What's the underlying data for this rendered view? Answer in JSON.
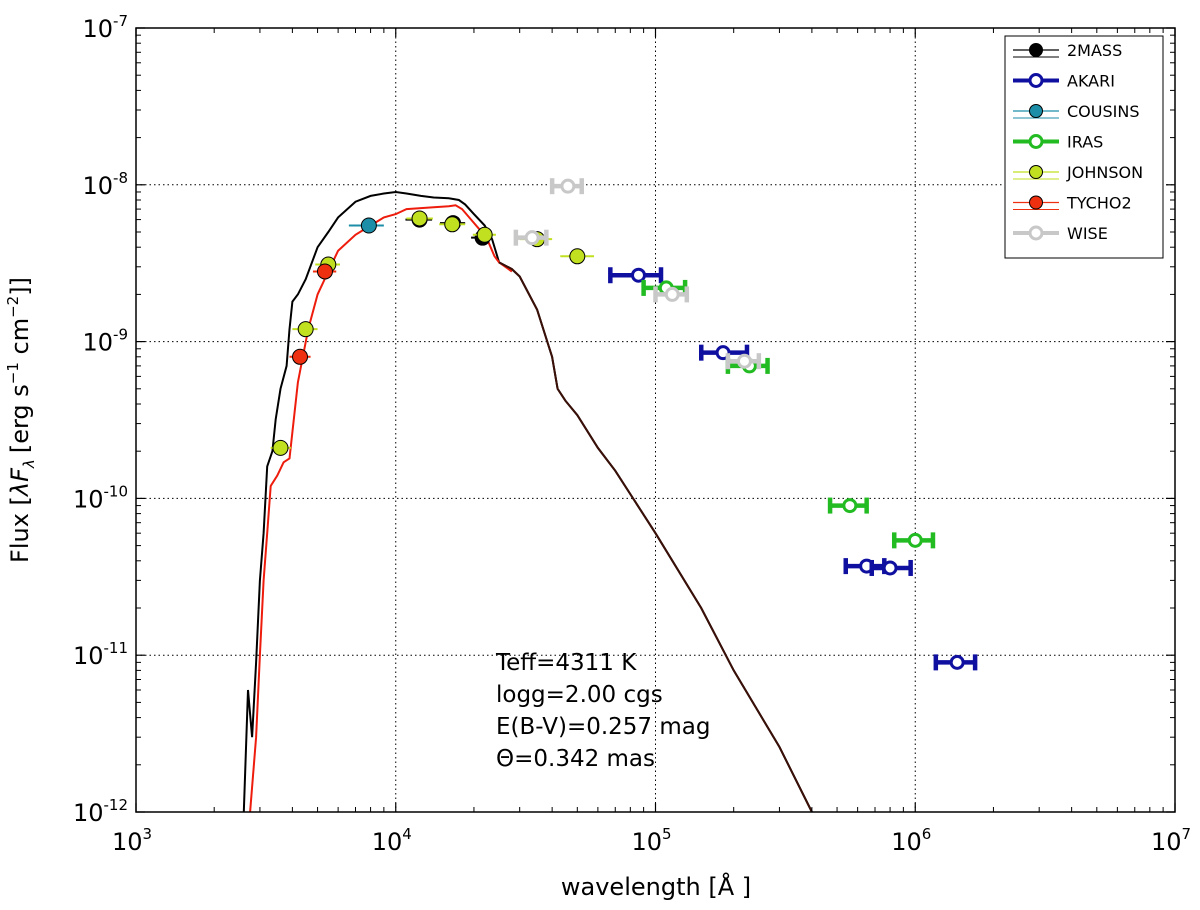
{
  "chart_data": {
    "type": "scatter",
    "title": "",
    "xlabel": "wavelength [Å ]",
    "ylabel": "Flux [λF_λ [erg s⁻¹ cm⁻²]]",
    "ylabel_parts": {
      "prefix": "Flux [",
      "lambda": "λ",
      "F": "F",
      "sub": "λ",
      "units": "[erg s",
      "exp1": "−1",
      "cm": " cm",
      "exp2": "−2",
      "close": "]]"
    },
    "x_scale": "log",
    "y_scale": "log",
    "xlim": [
      1000,
      10000000
    ],
    "ylim": [
      1e-12,
      1e-07
    ],
    "x_ticks": [
      {
        "base": "10",
        "exp": "3",
        "value": 1000
      },
      {
        "base": "10",
        "exp": "4",
        "value": 10000
      },
      {
        "base": "10",
        "exp": "5",
        "value": 100000
      },
      {
        "base": "10",
        "exp": "6",
        "value": 1000000
      },
      {
        "base": "10",
        "exp": "7",
        "value": 10000000
      }
    ],
    "y_ticks": [
      {
        "base": "10",
        "exp": "-12",
        "value": 1e-12
      },
      {
        "base": "10",
        "exp": "-11",
        "value": 1e-11
      },
      {
        "base": "10",
        "exp": "-10",
        "value": 1e-10
      },
      {
        "base": "10",
        "exp": "-9",
        "value": 1e-09
      },
      {
        "base": "10",
        "exp": "-8",
        "value": 1e-08
      },
      {
        "base": "10",
        "exp": "-7",
        "value": 1e-07
      }
    ],
    "grid": true,
    "legend_position": "top-right",
    "colors": {
      "2MASS": "#000000",
      "AKARI": "#1010a0",
      "COUSINS": "#1c8ea8",
      "IRAS": "#22bb22",
      "JOHNSON": "#c0e020",
      "TYCHO2": "#ee3010",
      "WISE": "#c8c8c8",
      "model_black": "#000000",
      "model_red": "#ee1c0c",
      "model_tail": "#3a1008"
    },
    "series": [
      {
        "name": "2MASS",
        "marker": "filled",
        "points": [
          {
            "x": 12350,
            "y": 6e-09,
            "xerr": [
              10900,
              13800
            ]
          },
          {
            "x": 16620,
            "y": 5.7e-09,
            "xerr": [
              14800,
              18500
            ]
          },
          {
            "x": 21590,
            "y": 4.6e-09,
            "xerr": [
              19500,
              23500
            ]
          }
        ]
      },
      {
        "name": "AKARI",
        "marker": "open",
        "points": [
          {
            "x": 86000,
            "y": 2.65e-09,
            "xerr": [
              67000,
              105000
            ]
          },
          {
            "x": 182000,
            "y": 8.5e-10,
            "xerr": [
              150000,
              225000
            ]
          },
          {
            "x": 650000,
            "y": 3.7e-11,
            "xerr": [
              540000,
              760000
            ]
          },
          {
            "x": 800000,
            "y": 3.6e-11,
            "xerr": [
              680000,
              960000
            ]
          },
          {
            "x": 1450000,
            "y": 9e-12,
            "xerr": [
              1200000,
              1700000
            ]
          }
        ]
      },
      {
        "name": "COUSINS",
        "marker": "filled",
        "points": [
          {
            "x": 7880,
            "y": 5.5e-09,
            "xerr": [
              6600,
              9000
            ]
          }
        ]
      },
      {
        "name": "IRAS",
        "marker": "open",
        "points": [
          {
            "x": 110000,
            "y": 2.2e-09,
            "xerr": [
              90000,
              130000
            ]
          },
          {
            "x": 230000,
            "y": 7e-10,
            "xerr": [
              190000,
              270000
            ]
          },
          {
            "x": 560000,
            "y": 9e-11,
            "xerr": [
              470000,
              650000
            ]
          },
          {
            "x": 1000000,
            "y": 5.4e-11,
            "xerr": [
              830000,
              1170000
            ]
          }
        ]
      },
      {
        "name": "JOHNSON",
        "marker": "filled",
        "points": [
          {
            "x": 3600,
            "y": 2.1e-10,
            "xerr": [
              3300,
              3950
            ]
          },
          {
            "x": 4500,
            "y": 1.2e-09,
            "xerr": [
              4000,
              5000
            ]
          },
          {
            "x": 5500,
            "y": 3.1e-09,
            "xerr": [
              4900,
              6100
            ]
          },
          {
            "x": 12350,
            "y": 6.1e-09,
            "xerr": [
              11000,
              13900
            ]
          },
          {
            "x": 16500,
            "y": 5.6e-09,
            "xerr": [
              14700,
              18500
            ]
          },
          {
            "x": 22000,
            "y": 4.8e-09,
            "xerr": [
              19800,
              24300
            ]
          },
          {
            "x": 35000,
            "y": 4.5e-09,
            "xerr": [
              30000,
              40000
            ]
          },
          {
            "x": 50000,
            "y": 3.5e-09,
            "xerr": [
              43000,
              58000
            ]
          }
        ]
      },
      {
        "name": "TYCHO2",
        "marker": "filled",
        "points": [
          {
            "x": 4280,
            "y": 8e-10,
            "xerr": [
              3900,
              4700
            ]
          },
          {
            "x": 5340,
            "y": 2.8e-09,
            "xerr": [
              4800,
              5900
            ]
          }
        ]
      },
      {
        "name": "WISE",
        "marker": "open",
        "points": [
          {
            "x": 33500,
            "y": 4.6e-09,
            "xerr": [
              29000,
              38000
            ]
          },
          {
            "x": 46000,
            "y": 9.8e-09,
            "xerr": [
              40000,
              52000
            ]
          },
          {
            "x": 116000,
            "y": 2e-09,
            "xerr": [
              100000,
              132000
            ]
          },
          {
            "x": 220000,
            "y": 7.5e-10,
            "xerr": [
              190000,
              250000
            ]
          }
        ]
      }
    ],
    "model_black": [
      [
        2600,
        6e-13
      ],
      [
        2700,
        6e-12
      ],
      [
        2800,
        3e-12
      ],
      [
        2900,
        9e-12
      ],
      [
        3000,
        3e-11
      ],
      [
        3100,
        6e-11
      ],
      [
        3200,
        1.6e-10
      ],
      [
        3350,
        2e-10
      ],
      [
        3450,
        3.2e-10
      ],
      [
        3600,
        5e-10
      ],
      [
        3800,
        7e-10
      ],
      [
        3900,
        1.2e-09
      ],
      [
        4000,
        1.8e-09
      ],
      [
        4200,
        2e-09
      ],
      [
        4500,
        2.5e-09
      ],
      [
        5000,
        4e-09
      ],
      [
        5500,
        5e-09
      ],
      [
        6000,
        6.2e-09
      ],
      [
        7000,
        7.8e-09
      ],
      [
        8000,
        8.5e-09
      ],
      [
        9000,
        8.8e-09
      ],
      [
        10000,
        9e-09
      ],
      [
        11000,
        8.8e-09
      ],
      [
        12500,
        8.5e-09
      ],
      [
        14000,
        8.3e-09
      ],
      [
        16000,
        8.2e-09
      ],
      [
        17500,
        8e-09
      ],
      [
        18500,
        7.5e-09
      ],
      [
        20000,
        6.5e-09
      ],
      [
        22000,
        5.5e-09
      ],
      [
        23500,
        4.5e-09
      ],
      [
        25000,
        3.2e-09
      ],
      [
        28000,
        2.9e-09
      ],
      [
        30000,
        2.6e-09
      ],
      [
        35000,
        1.6e-09
      ],
      [
        40000,
        8e-10
      ],
      [
        42000,
        5e-10
      ],
      [
        45000,
        4.2e-10
      ],
      [
        50000,
        3.4e-10
      ],
      [
        60000,
        2.1e-10
      ],
      [
        70000,
        1.5e-10
      ],
      [
        100000,
        6e-11
      ],
      [
        150000,
        2e-11
      ],
      [
        200000,
        8e-12
      ],
      [
        300000,
        2.6e-12
      ],
      [
        400000,
        1e-12
      ]
    ],
    "model_red": [
      [
        2750,
        6e-13
      ],
      [
        2900,
        3e-12
      ],
      [
        3000,
        1e-11
      ],
      [
        3100,
        3e-11
      ],
      [
        3200,
        6e-11
      ],
      [
        3300,
        1.2e-10
      ],
      [
        3500,
        1.4e-10
      ],
      [
        3700,
        1.7e-10
      ],
      [
        3900,
        1.8e-10
      ],
      [
        4200,
        5.5e-10
      ],
      [
        4600,
        1.2e-09
      ],
      [
        5000,
        2e-09
      ],
      [
        5500,
        2.8e-09
      ],
      [
        6000,
        3.8e-09
      ],
      [
        7000,
        4.8e-09
      ],
      [
        8000,
        5.5e-09
      ],
      [
        9000,
        6.2e-09
      ],
      [
        10000,
        6.5e-09
      ],
      [
        11000,
        7e-09
      ],
      [
        12500,
        7.1e-09
      ],
      [
        14000,
        7.2e-09
      ],
      [
        16000,
        7.3e-09
      ],
      [
        17000,
        7.4e-09
      ],
      [
        18000,
        7e-09
      ],
      [
        19500,
        6e-09
      ],
      [
        21000,
        5.2e-09
      ],
      [
        22500,
        4.5e-09
      ],
      [
        24000,
        3.5e-09
      ],
      [
        25000,
        3.2e-09
      ],
      [
        28000,
        2.8e-09
      ]
    ],
    "annotations": [
      "Teff=4311 K",
      "logg=2.00 cgs",
      "E(B-V)=0.257 mag",
      "Θ=0.342 mas"
    ]
  }
}
